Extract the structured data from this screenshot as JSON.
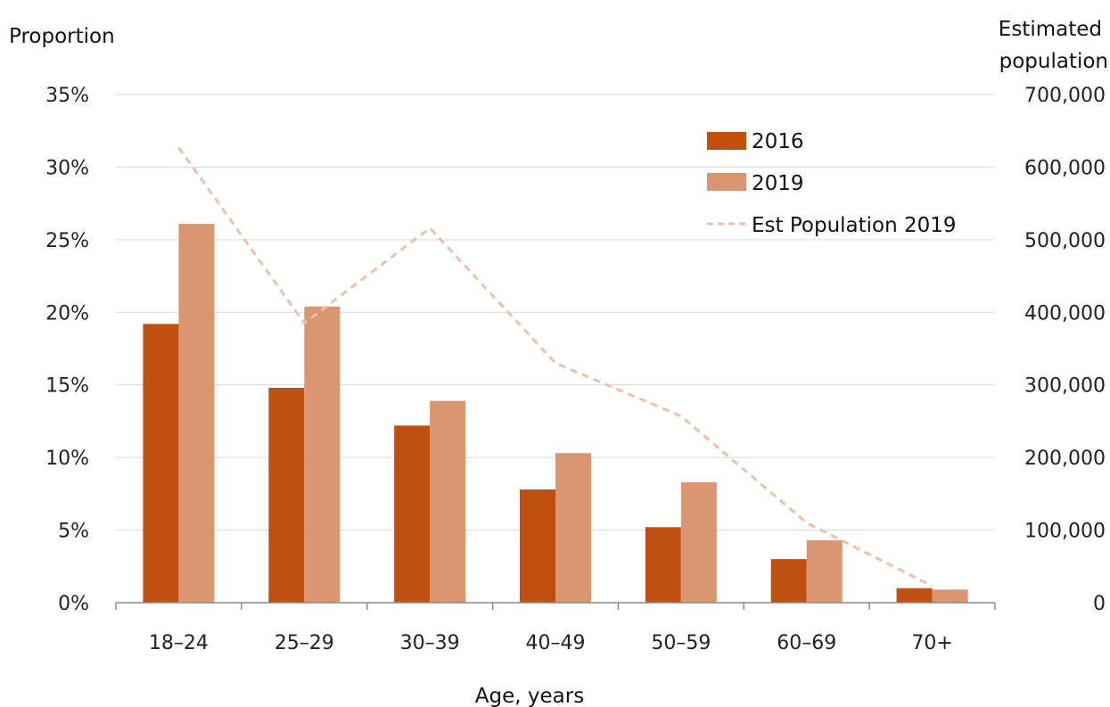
{
  "chart_data": {
    "type": "bar",
    "categories": [
      "18–24",
      "25–29",
      "30–39",
      "40–49",
      "50–59",
      "60–69",
      "70+"
    ],
    "series": [
      {
        "name": "2016",
        "axis": "left",
        "kind": "bar",
        "color": "#c0500f",
        "values": [
          0.192,
          0.148,
          0.122,
          0.078,
          0.052,
          0.03,
          0.01
        ]
      },
      {
        "name": "2019",
        "axis": "left",
        "kind": "bar",
        "color": "#da9670",
        "values": [
          0.261,
          0.204,
          0.139,
          0.103,
          0.083,
          0.043,
          0.009
        ]
      },
      {
        "name": "Est Population 2019",
        "axis": "right",
        "kind": "line",
        "style": "dashed",
        "color": "#f0c0a6",
        "values": [
          627000,
          385000,
          516000,
          330000,
          257000,
          110000,
          23000
        ]
      }
    ],
    "left_axis": {
      "title": "Proportion",
      "ylim": [
        0,
        0.35
      ],
      "ticks": [
        0,
        0.05,
        0.1,
        0.15,
        0.2,
        0.25,
        0.3,
        0.35
      ],
      "tick_labels": [
        "0%",
        "5%",
        "10%",
        "15%",
        "20%",
        "25%",
        "30%",
        "35%"
      ]
    },
    "right_axis": {
      "title": [
        "Estimated",
        "population"
      ],
      "ylim": [
        0,
        700000
      ],
      "ticks": [
        0,
        100000,
        200000,
        300000,
        400000,
        500000,
        600000,
        700000
      ],
      "tick_labels": [
        "0",
        "100,000",
        "200,000",
        "300,000",
        "400,000",
        "500,000",
        "600,000",
        "700,000"
      ]
    },
    "xlabel": "Age, years",
    "legend_position": "top-right",
    "grid": true
  }
}
